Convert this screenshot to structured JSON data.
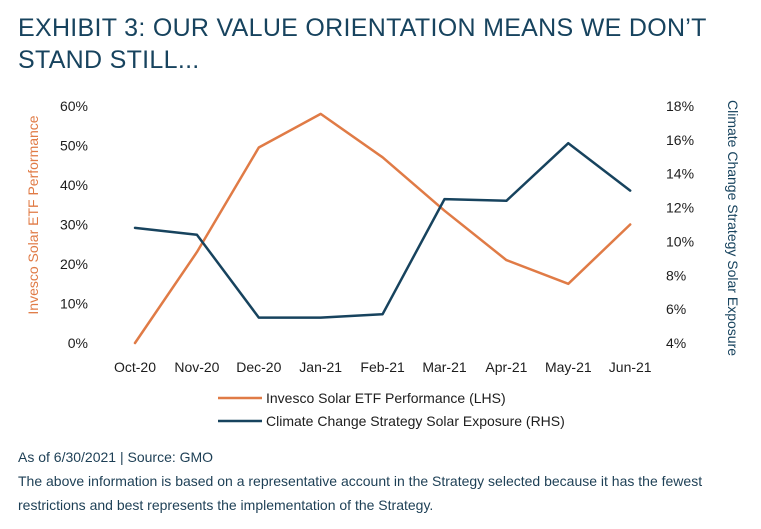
{
  "title_lines": [
    "EXHIBIT 3: OUR VALUE ORIENTATION MEANS WE DON’T",
    "STAND STILL..."
  ],
  "source": "As of 6/30/2021 | Source: GMO",
  "note": "The above information is based on a representative account in the Strategy selected because it has the fewest restrictions and best represents the implementation of the Strategy.",
  "chart_data": {
    "type": "line",
    "categories": [
      "Oct-20",
      "Nov-20",
      "Dec-20",
      "Jan-21",
      "Feb-21",
      "Mar-21",
      "Apr-21",
      "May-21",
      "Jun-21"
    ],
    "ylabel_left": "Invesco Solar ETF Performance",
    "ylabel_right": "Climate Change Strategy Solar Exposure",
    "ylim_left": [
      0,
      60
    ],
    "ylim_right": [
      4,
      18
    ],
    "left_ticks": [
      "0%",
      "10%",
      "20%",
      "30%",
      "40%",
      "50%",
      "60%"
    ],
    "right_ticks": [
      "4%",
      "6%",
      "8%",
      "10%",
      "12%",
      "14%",
      "16%",
      "18%"
    ],
    "grid": false,
    "legend_position": "bottom",
    "series": [
      {
        "name": "Invesco Solar ETF Performance (LHS)",
        "axis": "left",
        "color": "#e07b46",
        "values": [
          0,
          23,
          49.5,
          58,
          47,
          33.5,
          21,
          15,
          30
        ]
      },
      {
        "name": "Climate Change Strategy Solar Exposure (RHS)",
        "axis": "right",
        "color": "#17435e",
        "values": [
          10.8,
          10.4,
          5.5,
          5.5,
          5.7,
          12.5,
          12.4,
          15.8,
          13
        ]
      }
    ]
  }
}
